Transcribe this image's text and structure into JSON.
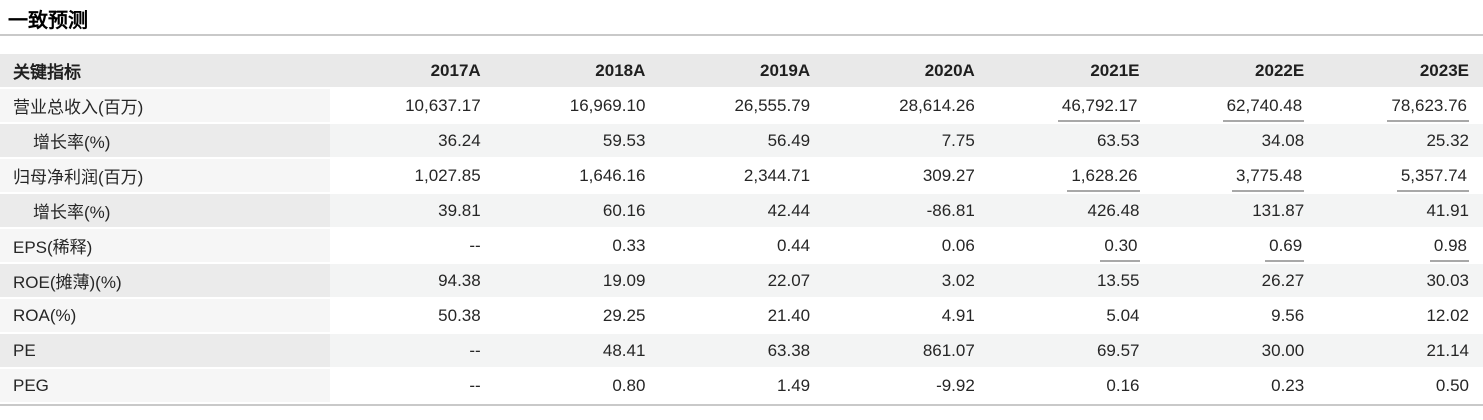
{
  "title": "一致预测",
  "table": {
    "header": [
      "关键指标",
      "2017A",
      "2018A",
      "2019A",
      "2020A",
      "2021E",
      "2022E",
      "2023E"
    ],
    "rows": [
      {
        "label": "营业总收入(百万)",
        "indent": false,
        "underline_estimates": true,
        "values": [
          "10,637.17",
          "16,969.10",
          "26,555.79",
          "28,614.26",
          "46,792.17",
          "62,740.48",
          "78,623.76"
        ]
      },
      {
        "label": "增长率(%)",
        "indent": true,
        "underline_estimates": false,
        "values": [
          "36.24",
          "59.53",
          "56.49",
          "7.75",
          "63.53",
          "34.08",
          "25.32"
        ]
      },
      {
        "label": "归母净利润(百万)",
        "indent": false,
        "underline_estimates": true,
        "values": [
          "1,027.85",
          "1,646.16",
          "2,344.71",
          "309.27",
          "1,628.26",
          "3,775.48",
          "5,357.74"
        ]
      },
      {
        "label": "增长率(%)",
        "indent": true,
        "underline_estimates": false,
        "values": [
          "39.81",
          "60.16",
          "42.44",
          "-86.81",
          "426.48",
          "131.87",
          "41.91"
        ]
      },
      {
        "label": "EPS(稀释)",
        "indent": false,
        "underline_estimates": true,
        "values": [
          "--",
          "0.33",
          "0.44",
          "0.06",
          "0.30",
          "0.69",
          "0.98"
        ]
      },
      {
        "label": "ROE(摊薄)(%)",
        "indent": false,
        "underline_estimates": false,
        "values": [
          "94.38",
          "19.09",
          "22.07",
          "3.02",
          "13.55",
          "26.27",
          "30.03"
        ]
      },
      {
        "label": "ROA(%)",
        "indent": false,
        "underline_estimates": false,
        "values": [
          "50.38",
          "29.25",
          "21.40",
          "4.91",
          "5.04",
          "9.56",
          "12.02"
        ]
      },
      {
        "label": "PE",
        "indent": false,
        "underline_estimates": false,
        "values": [
          "--",
          "48.41",
          "63.38",
          "861.07",
          "69.57",
          "30.00",
          "21.14"
        ]
      },
      {
        "label": "PEG",
        "indent": false,
        "underline_estimates": false,
        "values": [
          "--",
          "0.80",
          "1.49",
          "-9.92",
          "0.16",
          "0.23",
          "0.50"
        ]
      }
    ]
  },
  "colors": {
    "header_bg": "#e9e9e9",
    "stripe_value_bg": "#f3f4f4",
    "stripe_label_bg": "#ebebeb",
    "plain_label_bg": "#f6f6f6",
    "rule": "#c9c9c9",
    "estimate_underline": "#a8a8a8",
    "text": "#262626"
  }
}
